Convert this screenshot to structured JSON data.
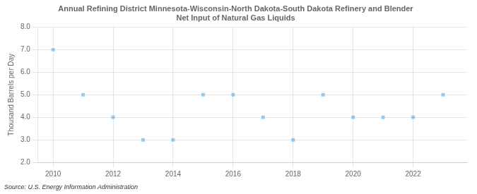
{
  "chart_data": {
    "type": "scatter",
    "title": "Annual Refining District Minnesota-Wisconsin-North Dakota-South Dakota Refinery and Blender\nNet Input of Natural Gas Liquids",
    "ylabel": "Thousand Barrels per Day",
    "annotations": [
      "Source: U.S. Energy Information Administration"
    ],
    "x": [
      2010,
      2011,
      2012,
      2013,
      2014,
      2015,
      2016,
      2017,
      2018,
      2019,
      2020,
      2021,
      2022,
      2023
    ],
    "values": [
      7.0,
      5.0,
      4.0,
      3.0,
      3.0,
      5.0,
      5.0,
      4.0,
      3.0,
      5.0,
      4.0,
      4.0,
      4.0,
      5.0
    ],
    "marker": "square",
    "xlim": [
      2009.5,
      2023.8
    ],
    "xticks": [
      2010,
      2012,
      2014,
      2016,
      2018,
      2020,
      2022
    ],
    "ylim": [
      2.0,
      8.0
    ],
    "yticks": [
      {
        "value": 2.0,
        "label": "2.0"
      },
      {
        "value": 3.0,
        "label": "3.0"
      },
      {
        "value": 4.0,
        "label": "4.0"
      },
      {
        "value": 5.0,
        "label": "5.0"
      },
      {
        "value": 6.0,
        "label": "6.0"
      },
      {
        "value": 7.0,
        "label": "7.0"
      },
      {
        "value": 8.0,
        "label": "8.0"
      }
    ],
    "grid": true
  }
}
